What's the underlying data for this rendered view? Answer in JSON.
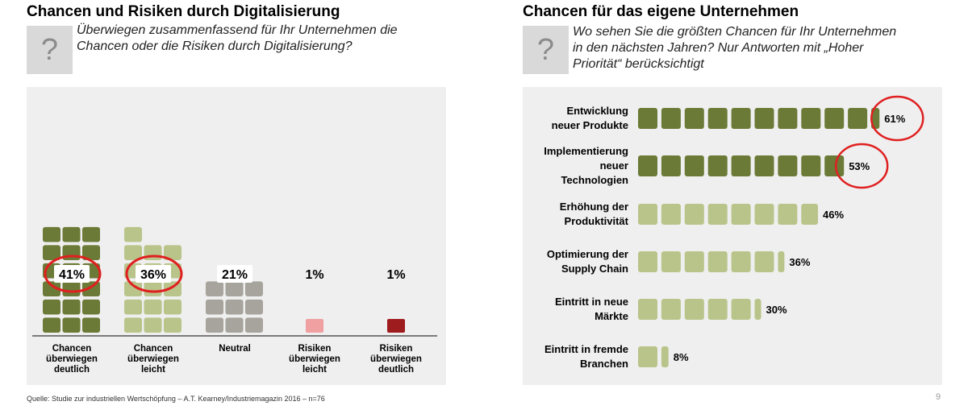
{
  "left": {
    "title": "Chancen und Risiken durch Digitalisierung",
    "question_mark": "?",
    "question": "Überwiegen zusammenfassend für Ihr Unternehmen die\nChancen oder die Risiken durch Digitalisierung?"
  },
  "right": {
    "title": "Chancen für das eigene Unternehmen",
    "question_mark": "?",
    "question": "Wo sehen Sie die größten Chancen für Ihr Unternehmen\nin den nächsten Jahren? Nur Antworten mit „Hoher\nPriorität“ berücksichtigt"
  },
  "source": "Quelle: Studie zur industriellen Wertschöpfung – A.T. Kearney/Industriemagazin 2016 – n=76",
  "page_number": "9",
  "colors": {
    "dark_green": "#6b7a36",
    "light_green": "#b9c48a",
    "grey": "#a6a49c",
    "light_red": "#f0a0a0",
    "dark_red": "#9e1b1e",
    "highlight_circle": "#e02020",
    "panel_bg": "#efefef"
  },
  "chart_data": [
    {
      "type": "bar",
      "orientation": "vertical",
      "categories": [
        [
          "Chancen",
          "überwiegen",
          "deutlich"
        ],
        [
          "Chancen",
          "überwiegen",
          "leicht"
        ],
        [
          "Neutral"
        ],
        [
          "Risiken",
          "überwiegen",
          "leicht"
        ],
        [
          "Risiken",
          "überwiegen",
          "deutlich"
        ]
      ],
      "values": [
        41,
        36,
        21,
        1,
        1
      ],
      "labels": [
        "41%",
        "36%",
        "21%",
        "1%",
        "1%"
      ],
      "bar_colors": [
        "dark_green",
        "light_green",
        "grey",
        "light_red",
        "dark_red"
      ],
      "highlighted": [
        0,
        1
      ]
    },
    {
      "type": "bar",
      "orientation": "horizontal",
      "categories": [
        [
          "Entwicklung",
          "neuer Produkte"
        ],
        [
          "Implementierung",
          "neuer",
          "Technologien"
        ],
        [
          "Erhöhung der",
          "Produktivität"
        ],
        [
          "Optimierung der",
          "Supply Chain"
        ],
        [
          "Eintritt in neue",
          "Märkte"
        ],
        [
          "Eintritt in fremde",
          "Branchen"
        ]
      ],
      "values": [
        61,
        53,
        46,
        36,
        30,
        8
      ],
      "labels": [
        "61%",
        "53%",
        "46%",
        "36%",
        "30%",
        "8%"
      ],
      "bar_colors": [
        "dark_green",
        "dark_green",
        "light_green",
        "light_green",
        "light_green",
        "light_green"
      ],
      "highlighted": [
        0,
        1
      ]
    }
  ]
}
